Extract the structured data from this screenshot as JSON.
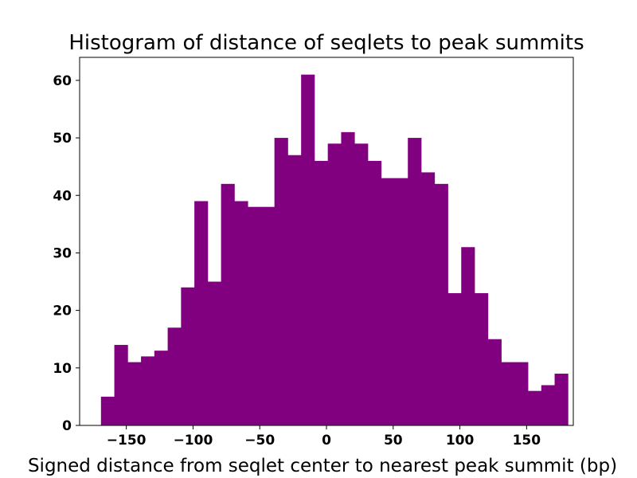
{
  "chart_data": {
    "type": "bar",
    "title": "Histogram of distance of seqlets to peak summits",
    "xlabel": "Signed distance from seqlet center to nearest peak summit (bp)",
    "ylabel": "",
    "xlim": [
      -185,
      185
    ],
    "ylim": [
      0,
      64
    ],
    "x_ticks": [
      -150,
      -100,
      -50,
      0,
      50,
      100,
      150
    ],
    "x_tick_labels": [
      "−150",
      "−100",
      "−50",
      "0",
      "50",
      "100",
      "150"
    ],
    "y_ticks": [
      0,
      10,
      20,
      30,
      40,
      50,
      60
    ],
    "y_tick_labels": [
      "0",
      "10",
      "20",
      "30",
      "40",
      "50",
      "60"
    ],
    "bin_edges_start": -169,
    "bin_width": 10,
    "values": [
      5,
      14,
      11,
      12,
      13,
      17,
      24,
      39,
      25,
      42,
      39,
      38,
      38,
      50,
      47,
      61,
      46,
      49,
      51,
      49,
      46,
      43,
      43,
      50,
      44,
      42,
      23,
      31,
      23,
      15,
      11,
      11,
      6,
      7,
      9
    ],
    "grid": false,
    "legend": "none",
    "colors": {
      "bar": "#800080"
    }
  }
}
